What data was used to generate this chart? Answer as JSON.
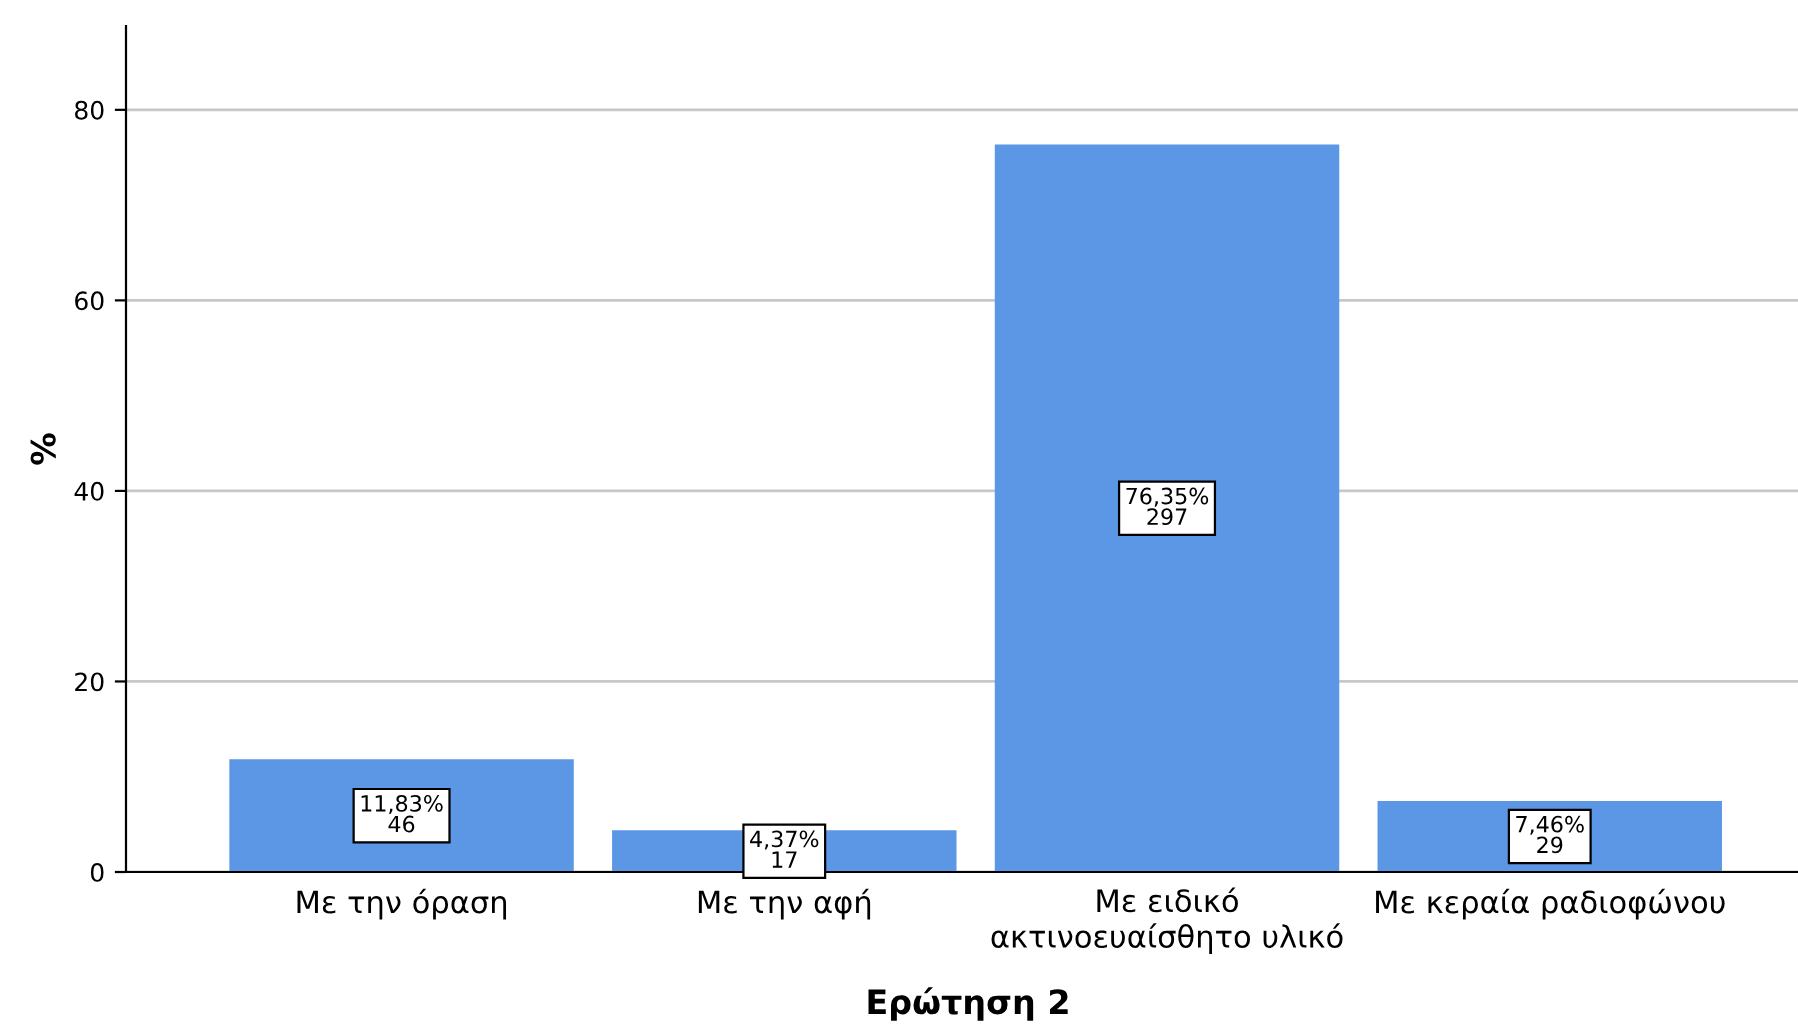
{
  "chart_data": {
    "type": "bar",
    "xlabel": "Ερώτηση 2",
    "ylabel": "%",
    "categories": [
      "Με την όραση",
      "Με την αφή",
      "Με ειδικό\nακτινοευαίσθητο υλικό",
      "Με κεραία ραδιοφώνου"
    ],
    "values": [
      11.83,
      4.37,
      76.35,
      7.46
    ],
    "value_labels": [
      "11,83%\n46",
      "4,37%\n17",
      "76,35%\n297",
      "7,46%\n29"
    ],
    "color": "#5b97e5",
    "ylim": [
      0,
      88.8
    ],
    "yticks": [
      0,
      20,
      40,
      60,
      80
    ],
    "grid": "y",
    "legend": false
  }
}
